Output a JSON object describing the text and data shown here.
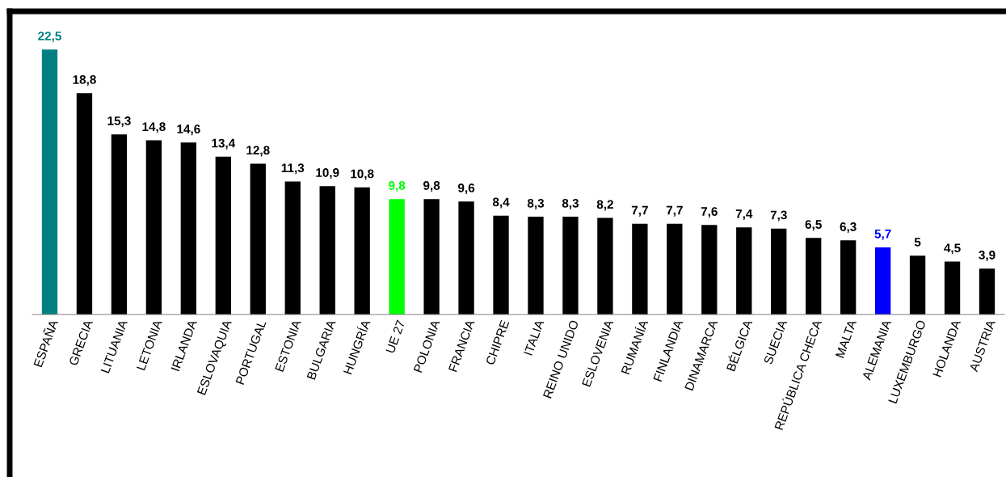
{
  "chart_data": {
    "type": "bar",
    "categories": [
      "ESPAÑA",
      "GRECIA",
      "LITUANIA",
      "LETONIA",
      "IRLANDA",
      "ESLOVAQUIA",
      "PORTUGAL",
      "ESTONIA",
      "BULGARIA",
      "HUNGRÍA",
      "UE 27",
      "POLONIA",
      "FRANCIA",
      "CHIPRE",
      "ITALIA",
      "REINO UNIDO",
      "ESLOVENIA",
      "RUMANÍA",
      "FINLANDIA",
      "DINAMARCA",
      "BÉLGICA",
      "SUECIA",
      "REPÚBLICA CHECA",
      "MALTA",
      "ALEMANIA",
      "LUXEMBURGO",
      "HOLANDA",
      "AUSTRIA"
    ],
    "values": [
      22.5,
      18.8,
      15.3,
      14.8,
      14.6,
      13.4,
      12.8,
      11.3,
      10.9,
      10.8,
      9.8,
      9.8,
      9.6,
      8.4,
      8.3,
      8.3,
      8.2,
      7.7,
      7.7,
      7.6,
      7.4,
      7.3,
      6.5,
      6.3,
      5.7,
      5,
      4.5,
      3.9
    ],
    "value_labels": [
      "22,5",
      "18,8",
      "15,3",
      "14,8",
      "14,6",
      "13,4",
      "12,8",
      "11,3",
      "10,9",
      "10,8",
      "9,8",
      "9,8",
      "9,6",
      "8,4",
      "8,3",
      "8,3",
      "8,2",
      "7,7",
      "7,7",
      "7,6",
      "7,4",
      "7,3",
      "6,5",
      "6,3",
      "5,7",
      "5",
      "4,5",
      "3,9"
    ],
    "colors": [
      "#008080",
      "#000000",
      "#000000",
      "#000000",
      "#000000",
      "#000000",
      "#000000",
      "#000000",
      "#000000",
      "#000000",
      "#00ff00",
      "#000000",
      "#000000",
      "#000000",
      "#000000",
      "#000000",
      "#000000",
      "#000000",
      "#000000",
      "#000000",
      "#000000",
      "#000000",
      "#000000",
      "#000000",
      "#0000ff",
      "#000000",
      "#000000",
      "#000000"
    ],
    "grid": false,
    "tick_labels": "x"
  }
}
